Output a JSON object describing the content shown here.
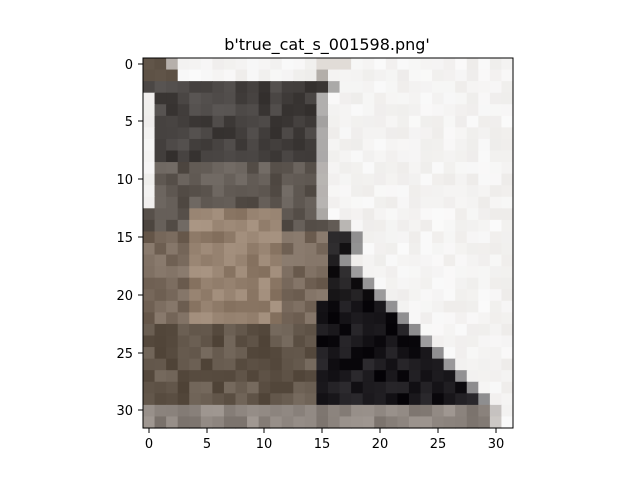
{
  "figure": {
    "title": "b'true_cat_s_001598.png'",
    "image_grid": {
      "rows": 32,
      "cols": 32
    },
    "x_ticks": [
      "0",
      "5",
      "10",
      "15",
      "20",
      "25",
      "30"
    ],
    "y_ticks": [
      "0",
      "5",
      "10",
      "15",
      "20",
      "25",
      "30"
    ]
  }
}
